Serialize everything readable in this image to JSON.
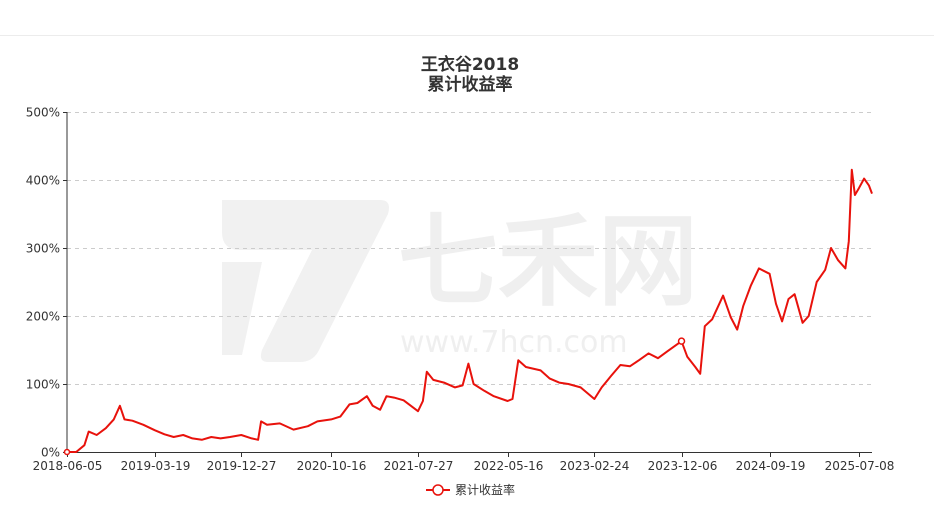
{
  "chart_data": {
    "type": "line",
    "title": "王衣谷2018",
    "subtitle": "累计收益率",
    "watermark": {
      "brand": "七禾网",
      "url": "www.7hcn.com"
    },
    "y_axis": {
      "min": 0,
      "max": 500,
      "step": 100,
      "unit": "%",
      "tick_labels": [
        "0%",
        "100%",
        "200%",
        "300%",
        "400%",
        "500%"
      ]
    },
    "x_axis": {
      "start": "2018-06-05",
      "end": "2025-08-20",
      "tick_labels": [
        "2018-06-05",
        "2019-03-19",
        "2019-12-27",
        "2020-10-16",
        "2021-07-27",
        "2022-05-16",
        "2023-02-24",
        "2023-12-06",
        "2024-09-19",
        "2025-07-08"
      ]
    },
    "grid": true,
    "legend": {
      "position": "bottom-center",
      "label": "累计收益率"
    },
    "series": [
      {
        "name": "累计收益率",
        "color": "#e8120c",
        "points": [
          [
            "2018-06-05",
            0
          ],
          [
            "2018-07-05",
            0
          ],
          [
            "2018-08-01",
            10
          ],
          [
            "2018-08-15",
            30
          ],
          [
            "2018-09-10",
            25
          ],
          [
            "2018-10-10",
            35
          ],
          [
            "2018-11-05",
            48
          ],
          [
            "2018-11-25",
            68
          ],
          [
            "2018-12-10",
            48
          ],
          [
            "2019-01-05",
            46
          ],
          [
            "2019-02-10",
            40
          ],
          [
            "2019-03-19",
            32
          ],
          [
            "2019-04-20",
            26
          ],
          [
            "2019-05-20",
            22
          ],
          [
            "2019-06-20",
            25
          ],
          [
            "2019-07-20",
            20
          ],
          [
            "2019-08-20",
            18
          ],
          [
            "2019-09-20",
            22
          ],
          [
            "2019-10-20",
            20
          ],
          [
            "2019-11-20",
            22
          ],
          [
            "2019-12-27",
            25
          ],
          [
            "2020-01-30",
            20
          ],
          [
            "2020-02-20",
            18
          ],
          [
            "2020-03-01",
            45
          ],
          [
            "2020-03-20",
            40
          ],
          [
            "2020-05-01",
            42
          ],
          [
            "2020-06-15",
            33
          ],
          [
            "2020-08-01",
            38
          ],
          [
            "2020-09-01",
            45
          ],
          [
            "2020-10-16",
            48
          ],
          [
            "2020-11-15",
            52
          ],
          [
            "2020-12-15",
            70
          ],
          [
            "2021-01-10",
            72
          ],
          [
            "2021-02-10",
            82
          ],
          [
            "2021-03-01",
            68
          ],
          [
            "2021-03-25",
            62
          ],
          [
            "2021-04-15",
            82
          ],
          [
            "2021-05-10",
            80
          ],
          [
            "2021-06-10",
            76
          ],
          [
            "2021-07-27",
            60
          ],
          [
            "2021-08-12",
            75
          ],
          [
            "2021-08-25",
            118
          ],
          [
            "2021-09-15",
            106
          ],
          [
            "2021-10-20",
            102
          ],
          [
            "2021-11-25",
            95
          ],
          [
            "2021-12-20",
            98
          ],
          [
            "2022-01-08",
            130
          ],
          [
            "2022-01-25",
            100
          ],
          [
            "2022-03-01",
            90
          ],
          [
            "2022-04-01",
            82
          ],
          [
            "2022-05-16",
            75
          ],
          [
            "2022-06-01",
            78
          ],
          [
            "2022-06-20",
            135
          ],
          [
            "2022-07-15",
            125
          ],
          [
            "2022-09-01",
            120
          ],
          [
            "2022-10-01",
            108
          ],
          [
            "2022-11-01",
            102
          ],
          [
            "2022-12-01",
            100
          ],
          [
            "2023-01-10",
            95
          ],
          [
            "2023-02-24",
            78
          ],
          [
            "2023-03-20",
            95
          ],
          [
            "2023-04-20",
            112
          ],
          [
            "2023-05-20",
            128
          ],
          [
            "2023-06-20",
            126
          ],
          [
            "2023-07-20",
            135
          ],
          [
            "2023-08-20",
            145
          ],
          [
            "2023-09-20",
            138
          ],
          [
            "2023-10-20",
            148
          ],
          [
            "2023-12-06",
            163
          ],
          [
            "2023-12-25",
            140
          ],
          [
            "2024-01-20",
            125
          ],
          [
            "2024-02-05",
            115
          ],
          [
            "2024-02-20",
            185
          ],
          [
            "2024-03-15",
            195
          ],
          [
            "2024-04-20",
            230
          ],
          [
            "2024-05-15",
            198
          ],
          [
            "2024-06-05",
            180
          ],
          [
            "2024-06-25",
            215
          ],
          [
            "2024-07-20",
            245
          ],
          [
            "2024-08-15",
            270
          ],
          [
            "2024-09-19",
            262
          ],
          [
            "2024-10-10",
            218
          ],
          [
            "2024-10-30",
            192
          ],
          [
            "2024-11-20",
            225
          ],
          [
            "2024-12-10",
            232
          ],
          [
            "2025-01-05",
            190
          ],
          [
            "2025-01-25",
            200
          ],
          [
            "2025-02-20",
            250
          ],
          [
            "2025-03-20",
            268
          ],
          [
            "2025-04-08",
            300
          ],
          [
            "2025-05-01",
            282
          ],
          [
            "2025-05-25",
            270
          ],
          [
            "2025-06-05",
            310
          ],
          [
            "2025-06-15",
            415
          ],
          [
            "2025-06-25",
            378
          ],
          [
            "2025-07-08",
            388
          ],
          [
            "2025-07-25",
            402
          ],
          [
            "2025-08-10",
            392
          ],
          [
            "2025-08-20",
            380
          ]
        ],
        "annotations": [
          {
            "date": "2023-12-06",
            "value": 163,
            "marker": "circle"
          }
        ]
      }
    ]
  }
}
